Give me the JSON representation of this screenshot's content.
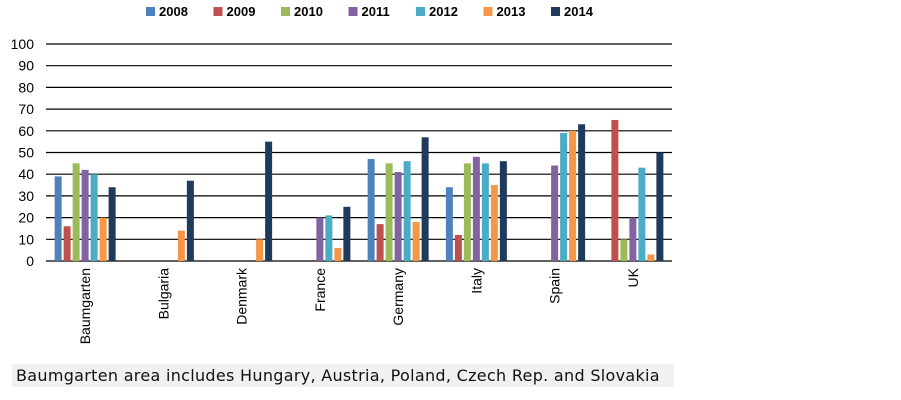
{
  "chart_data": {
    "type": "bar",
    "categories": [
      "Baumgarten",
      "Bulgaria",
      "Denmark",
      "France",
      "Germany",
      "Italy",
      "Spain",
      "UK"
    ],
    "series": [
      {
        "name": "2008",
        "color": "#4f81bd",
        "values": [
          39,
          null,
          null,
          null,
          47,
          34,
          null,
          null
        ]
      },
      {
        "name": "2009",
        "color": "#c0504d",
        "values": [
          16,
          null,
          null,
          null,
          17,
          12,
          null,
          65
        ]
      },
      {
        "name": "2010",
        "color": "#9bbb59",
        "values": [
          45,
          null,
          null,
          null,
          45,
          45,
          null,
          10
        ]
      },
      {
        "name": "2011",
        "color": "#8064a2",
        "values": [
          42,
          null,
          null,
          20,
          41,
          48,
          44,
          20
        ]
      },
      {
        "name": "2012",
        "color": "#4bacc6",
        "values": [
          40,
          null,
          null,
          21,
          46,
          45,
          59,
          43
        ]
      },
      {
        "name": "2013",
        "color": "#f79646",
        "values": [
          20,
          14,
          10,
          6,
          18,
          35,
          60,
          3
        ]
      },
      {
        "name": "2014",
        "color": "#1f3b5c",
        "values": [
          34,
          37,
          55,
          25,
          57,
          46,
          63,
          50
        ]
      }
    ],
    "ylim": [
      0,
      100
    ],
    "yticks": [
      "0",
      "10",
      "20",
      "30",
      "40",
      "50",
      "60",
      "70",
      "80",
      "90",
      "100"
    ],
    "grid": true,
    "legend_position": "top",
    "xlabel": "",
    "ylabel": ""
  },
  "footnote": "Baumgarten area includes Hungary, Austria, Poland, Czech Rep. and Slovakia"
}
